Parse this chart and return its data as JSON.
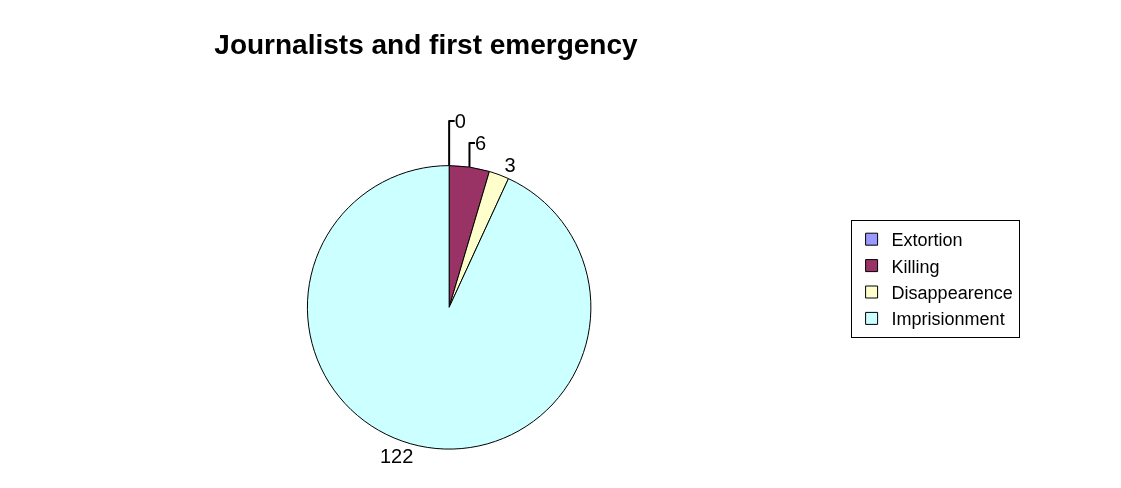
{
  "chart_data": {
    "type": "pie",
    "title": "Journalists and first emergency",
    "categories": [
      "Extortion",
      "Killing",
      "Disappearence",
      "Imprisionment"
    ],
    "values": [
      0,
      6,
      3,
      122
    ],
    "colors": [
      "#9999ff",
      "#993366",
      "#ffffcc",
      "#ccffff"
    ],
    "value_labels": [
      "0",
      "6",
      "3",
      "122"
    ],
    "legend": "right"
  }
}
